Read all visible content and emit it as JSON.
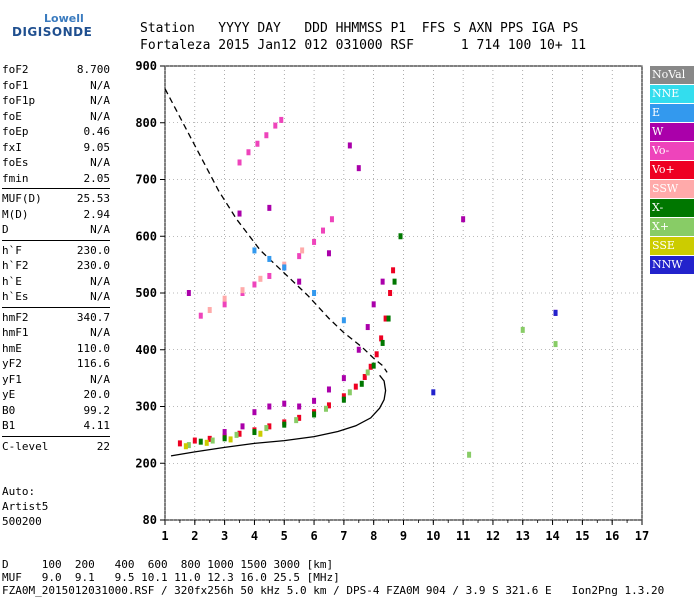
{
  "logo": {
    "line1": "Lowell",
    "line2": "DIGISONDE"
  },
  "header": {
    "labels": "Station   YYYY DAY   DDD HHMMSS P1  FFS S AXN PPS IGA PS",
    "values": "Fortaleza 2015 Jan12 012 031000 RSF      1 714 100 10+ 11"
  },
  "params": [
    {
      "name": "foF2",
      "value": "8.700"
    },
    {
      "name": "foF1",
      "value": "N/A"
    },
    {
      "name": "foF1p",
      "value": "N/A"
    },
    {
      "name": "foE",
      "value": "N/A"
    },
    {
      "name": "foEp",
      "value": "0.46"
    },
    {
      "name": "fxI",
      "value": "9.05"
    },
    {
      "name": "foEs",
      "value": "N/A"
    },
    {
      "name": "fmin",
      "value": "2.05"
    },
    {
      "sep": true
    },
    {
      "name": "MUF(D)",
      "value": "25.53"
    },
    {
      "name": "M(D)",
      "value": "2.94"
    },
    {
      "name": "D",
      "value": "N/A"
    },
    {
      "sep": true
    },
    {
      "name": "h`F",
      "value": "230.0"
    },
    {
      "name": "h`F2",
      "value": "230.0"
    },
    {
      "name": "h`E",
      "value": "N/A"
    },
    {
      "name": "h`Es",
      "value": "N/A"
    },
    {
      "sep": true
    },
    {
      "name": "hmF2",
      "value": "340.7"
    },
    {
      "name": "hmF1",
      "value": "N/A"
    },
    {
      "name": "hmE",
      "value": "110.0"
    },
    {
      "name": "yF2",
      "value": "116.6"
    },
    {
      "name": "yF1",
      "value": "N/A"
    },
    {
      "name": "yE",
      "value": "20.0"
    },
    {
      "name": "B0",
      "value": "99.2"
    },
    {
      "name": "B1",
      "value": "4.11"
    },
    {
      "sep": true
    },
    {
      "name": "C-level",
      "value": "22"
    }
  ],
  "auto": {
    "line1": "Auto:",
    "line2": "Artist5",
    "line3": "500200"
  },
  "legend": [
    {
      "label": "NoVal",
      "color": "#888888"
    },
    {
      "label": "NNE",
      "color": "#33ddee"
    },
    {
      "label": "E",
      "color": "#3399ee"
    },
    {
      "label": "W",
      "color": "#aa00aa"
    },
    {
      "label": "Vo-",
      "color": "#ee44bb"
    },
    {
      "label": "Vo+",
      "color": "#ee0022"
    },
    {
      "label": "SSW",
      "color": "#ffaaaa"
    },
    {
      "label": "X-",
      "color": "#007700"
    },
    {
      "label": "X+",
      "color": "#88cc66"
    },
    {
      "label": "SSE",
      "color": "#cccc00"
    },
    {
      "label": "NNW",
      "color": "#2222cc"
    }
  ],
  "footer": {
    "line1": "D     100  200   400  600  800 1000 1500 3000 [km]",
    "line2": "MUF   9.0  9.1   9.5 10.1 11.0 12.3 16.0 25.5 [MHz]",
    "line3": "FZA0M_2015012031000.RSF / 320fx256h 50 kHz 5.0 km / DPS-4 FZA0M 904 / 3.9 S 321.6 E   Ion2Png 1.3.20"
  },
  "chart_data": {
    "type": "scatter",
    "title": "",
    "xlabel": "",
    "ylabel": "",
    "xlim": [
      1,
      17
    ],
    "ylim": [
      80,
      900
    ],
    "xticks": [
      1,
      2,
      3,
      4,
      5,
      6,
      7,
      8,
      9,
      10,
      11,
      12,
      13,
      14,
      15,
      16,
      17
    ],
    "yticks": [
      80,
      200,
      300,
      400,
      500,
      600,
      700,
      800,
      900
    ],
    "grid": "dotted",
    "curves": [
      {
        "style": "solid",
        "points": [
          [
            1.2,
            213
          ],
          [
            2,
            220
          ],
          [
            3,
            228
          ],
          [
            4,
            235
          ],
          [
            5,
            240
          ],
          [
            6,
            247
          ],
          [
            6.8,
            256
          ],
          [
            7.4,
            266
          ],
          [
            7.9,
            280
          ],
          [
            8.2,
            297
          ],
          [
            8.35,
            312
          ],
          [
            8.4,
            328
          ],
          [
            8.35,
            345
          ],
          [
            8.2,
            355
          ]
        ]
      },
      {
        "style": "dashed",
        "points": [
          [
            1.0,
            860
          ],
          [
            1.6,
            800
          ],
          [
            2.2,
            740
          ],
          [
            2.8,
            680
          ],
          [
            3.4,
            630
          ],
          [
            4.2,
            575
          ],
          [
            5,
            535
          ],
          [
            5.8,
            495
          ],
          [
            6.5,
            455
          ],
          [
            7,
            430
          ],
          [
            7.6,
            405
          ],
          [
            8.0,
            385
          ],
          [
            8.3,
            372
          ],
          [
            8.45,
            360
          ]
        ]
      }
    ],
    "traces": [
      {
        "color": "#ee0022",
        "points": [
          [
            1.5,
            235
          ],
          [
            2,
            240
          ],
          [
            2.5,
            243
          ],
          [
            3,
            247
          ],
          [
            3.5,
            252
          ],
          [
            4,
            258
          ],
          [
            4.5,
            265
          ],
          [
            5,
            272
          ],
          [
            5.5,
            280
          ],
          [
            6,
            290
          ],
          [
            6.5,
            302
          ],
          [
            7,
            318
          ],
          [
            7.4,
            335
          ],
          [
            7.7,
            352
          ],
          [
            7.9,
            370
          ],
          [
            8.1,
            392
          ],
          [
            8.25,
            420
          ],
          [
            8.4,
            455
          ],
          [
            8.55,
            500
          ],
          [
            8.65,
            540
          ]
        ]
      },
      {
        "color": "#007700",
        "points": [
          [
            2.2,
            238
          ],
          [
            3,
            244
          ],
          [
            4,
            255
          ],
          [
            5,
            268
          ],
          [
            6,
            286
          ],
          [
            7,
            312
          ],
          [
            7.6,
            340
          ],
          [
            8,
            372
          ],
          [
            8.3,
            412
          ],
          [
            8.5,
            455
          ],
          [
            8.7,
            520
          ],
          [
            8.9,
            600
          ]
        ]
      },
      {
        "color": "#aa00aa",
        "points": [
          [
            3,
            255
          ],
          [
            3.6,
            265
          ],
          [
            4,
            290
          ],
          [
            4.5,
            300
          ],
          [
            5,
            305
          ],
          [
            5.5,
            300
          ],
          [
            6,
            310
          ],
          [
            6.5,
            330
          ],
          [
            7,
            350
          ],
          [
            7.5,
            400
          ],
          [
            7.8,
            440
          ],
          [
            8,
            480
          ],
          [
            8.3,
            520
          ]
        ]
      },
      {
        "color": "#ee44bb",
        "points": [
          [
            2.2,
            460
          ],
          [
            3,
            480
          ],
          [
            3.6,
            500
          ],
          [
            4,
            515
          ],
          [
            4.5,
            530
          ],
          [
            5,
            545
          ],
          [
            5.5,
            565
          ],
          [
            6,
            590
          ],
          [
            6.3,
            610
          ],
          [
            6.6,
            630
          ]
        ]
      },
      {
        "color": "#ee44bb",
        "points": [
          [
            3.5,
            730
          ],
          [
            3.8,
            748
          ],
          [
            4.1,
            763
          ],
          [
            4.4,
            778
          ],
          [
            4.7,
            795
          ],
          [
            4.9,
            805
          ]
        ]
      },
      {
        "color": "#ffaaaa",
        "points": [
          [
            2.5,
            470
          ],
          [
            3,
            490
          ],
          [
            3.6,
            505
          ],
          [
            4.2,
            525
          ],
          [
            5,
            550
          ],
          [
            5.6,
            575
          ]
        ]
      },
      {
        "color": "#88cc66",
        "points": [
          [
            1.8,
            232
          ],
          [
            2.6,
            240
          ],
          [
            3.4,
            250
          ],
          [
            4.4,
            262
          ],
          [
            5.4,
            276
          ],
          [
            6.4,
            296
          ],
          [
            7.2,
            325
          ],
          [
            7.8,
            360
          ]
        ]
      },
      {
        "color": "#cccc00",
        "points": [
          [
            1.7,
            230
          ],
          [
            2.4,
            236
          ],
          [
            3.2,
            242
          ],
          [
            4.2,
            252
          ]
        ]
      },
      {
        "color": "#3399ee",
        "points": [
          [
            4,
            575
          ],
          [
            4.5,
            560
          ],
          [
            5,
            545
          ],
          [
            6,
            500
          ],
          [
            7,
            452
          ]
        ]
      },
      {
        "color": "#aa00aa",
        "points": [
          [
            1.8,
            500
          ],
          [
            3.5,
            640
          ],
          [
            4.5,
            650
          ],
          [
            5.5,
            520
          ],
          [
            6.5,
            570
          ],
          [
            7.2,
            760
          ],
          [
            7.5,
            720
          ],
          [
            11,
            630
          ],
          [
            14.1,
            465
          ]
        ]
      },
      {
        "color": "#2222cc",
        "points": [
          [
            10,
            325
          ],
          [
            14.1,
            465
          ]
        ]
      },
      {
        "color": "#88cc66",
        "points": [
          [
            11.2,
            215
          ],
          [
            14.1,
            410
          ],
          [
            13,
            435
          ]
        ]
      }
    ]
  }
}
